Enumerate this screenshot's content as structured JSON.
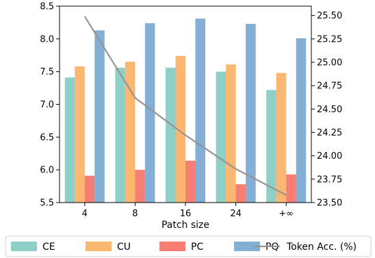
{
  "chart_data": {
    "type": "bar",
    "categories": [
      "4",
      "8",
      "16",
      "24",
      "+∞"
    ],
    "xlabel": "Patch size",
    "ylabel": "",
    "y2label": "",
    "ylim": [
      5.5,
      8.5
    ],
    "y2lim": [
      23.5,
      25.6
    ],
    "yticks": [
      "5.5",
      "6.0",
      "6.5",
      "7.0",
      "7.5",
      "8.0",
      "8.5"
    ],
    "y2ticks": [
      "23.50",
      "23.75",
      "24.00",
      "24.25",
      "24.50",
      "24.75",
      "25.00",
      "25.25",
      "25.50"
    ],
    "series": [
      {
        "name": "CE",
        "color": "#8ecfc7",
        "axis": "left",
        "values": [
          7.41,
          7.56,
          7.56,
          7.5,
          7.22
        ]
      },
      {
        "name": "CU",
        "color": "#fbb76f",
        "axis": "left",
        "values": [
          7.58,
          7.65,
          7.74,
          7.61,
          7.48
        ]
      },
      {
        "name": "PC",
        "color": "#f77e72",
        "axis": "left",
        "values": [
          5.91,
          6.0,
          6.14,
          5.78,
          5.93
        ]
      },
      {
        "name": "PQ",
        "color": "#82afd3",
        "axis": "left",
        "values": [
          8.13,
          8.24,
          8.31,
          8.23,
          8.01
        ]
      }
    ],
    "line": {
      "name": "Token Acc. (%)",
      "color": "#949494",
      "axis": "right",
      "values": [
        25.49,
        24.62,
        24.22,
        23.86,
        23.58
      ]
    },
    "grid": false,
    "legend": "bottom"
  }
}
